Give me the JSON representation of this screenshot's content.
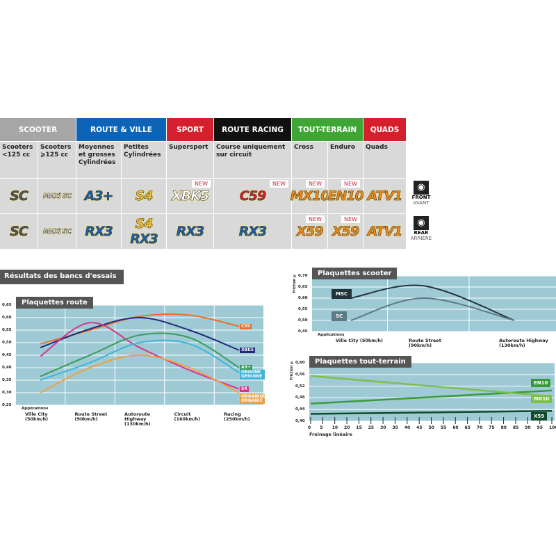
{
  "table": {
    "categories": [
      {
        "label": "SCOOTER",
        "color": "#a6a6a6"
      },
      {
        "label": "ROUTE & VILLE",
        "color": "#0d63b5"
      },
      {
        "label": "SPORT",
        "color": "#d41f2c"
      },
      {
        "label": "ROUTE RACING",
        "color": "#111111"
      },
      {
        "label": "TOUT-TERRAIN",
        "color": "#3fa535"
      },
      {
        "label": "QUADS",
        "color": "#d41f2c"
      }
    ],
    "columns": [
      {
        "desc": "Scooters <125 cc",
        "front": "SC",
        "rear": "SC"
      },
      {
        "desc": "Scooters ⩾125 cc",
        "front": "MAXI SC",
        "rear": "MAXI SC"
      },
      {
        "desc": "Moyennes et grosses Cylindrées",
        "front": "A3+",
        "rear": "RX3"
      },
      {
        "desc": "Petites Cylindrées",
        "front": "S4",
        "rear": "S4",
        "rear2": "RX3"
      },
      {
        "desc": "Supersport",
        "front": "XBK5",
        "rear": "RX3",
        "front_new": "NEW"
      },
      {
        "desc": "Course uniquement sur circuit",
        "front": "C59",
        "rear": "RX3",
        "front_new": "NEW"
      },
      {
        "desc": "Cross",
        "front": "MX10",
        "rear": "X59",
        "front_new": "NEW",
        "rear_new": "NEW"
      },
      {
        "desc": "Enduro",
        "front": "EN10",
        "rear": "X59",
        "front_new": "NEW",
        "rear_new": "NEW"
      },
      {
        "desc": "Quads",
        "front": "ATV1",
        "rear": "ATV1"
      }
    ],
    "front_label": "FRONT",
    "front_sub": "AVANT",
    "rear_label": "REAR",
    "rear_sub": "ARRIÈRE"
  },
  "section_title": "Résultats des bancs d'essais",
  "chart_data": [
    {
      "type": "line",
      "title": "Plaquettes route",
      "ylabel": "Friction µ",
      "xlabel": "Applications",
      "categories": [
        "Ville City (50km/h)",
        "Route Street (90km/h)",
        "Autoroute Highway (130km/h)",
        "Circuit (160km/h)",
        "Racing (250km/h)"
      ],
      "ylim": [
        0.25,
        0.65
      ],
      "yticks": [
        "0,25",
        "0,30",
        "0,35",
        "0,40",
        "0,45",
        "0,50",
        "0,55",
        "0,60",
        "0,65"
      ],
      "series": [
        {
          "name": "C59",
          "color": "#e8702a",
          "values": [
            0.495,
            0.55,
            0.605,
            0.61,
            0.565
          ]
        },
        {
          "name": "XBK5",
          "color": "#1f2a7a",
          "values": [
            0.48,
            0.555,
            0.6,
            0.55,
            0.47
          ]
        },
        {
          "name": "S4",
          "color": "#d8348f",
          "values": [
            0.445,
            0.58,
            0.48,
            0.39,
            0.315
          ]
        },
        {
          "name": "A3+",
          "color": "#3a9a5a",
          "values": [
            0.365,
            0.45,
            0.53,
            0.52,
            0.4
          ]
        },
        {
          "name": "ORIGINE GENUINE",
          "color": "#3fb4d8",
          "values": [
            0.35,
            0.42,
            0.5,
            0.495,
            0.38
          ]
        },
        {
          "name": "ORGANIQUE ORGANIC",
          "color": "#f0a040",
          "values": [
            0.3,
            0.4,
            0.45,
            0.4,
            0.3
          ]
        }
      ]
    },
    {
      "type": "line",
      "title": "Plaquettes scooter",
      "ylabel": "Friction µ",
      "xlabel": "Applications",
      "categories": [
        "Ville City (50km/h)",
        "Route Street (90km/h)",
        "Autoroute Highway (130km/h)"
      ],
      "ylim": [
        0.45,
        0.7
      ],
      "yticks": [
        "0,45",
        "0,50",
        "0,55",
        "0,60",
        "0,65",
        "0,70"
      ],
      "series": [
        {
          "name": "MSC",
          "color": "#22333a",
          "values": [
            0.6,
            0.655,
            0.5
          ]
        },
        {
          "name": "SC",
          "color": "#5b7a85",
          "values": [
            0.5,
            0.6,
            0.5
          ]
        }
      ]
    },
    {
      "type": "line",
      "title": "Plaquettes tout-terrain",
      "ylabel": "Friction µ",
      "xlabel": "Freinage linéaire",
      "x": [
        0,
        5,
        10,
        20,
        15,
        25,
        30,
        35,
        40,
        45,
        50,
        55,
        60,
        65,
        70,
        75,
        80,
        85,
        90,
        95,
        100
      ],
      "xticks": [
        "0",
        "5",
        "10",
        "20",
        "15",
        "25",
        "30",
        "35",
        "40",
        "45",
        "50",
        "55",
        "60",
        "65",
        "70",
        "75",
        "80",
        "85",
        "90",
        "95",
        "100"
      ],
      "ylim": [
        0.4,
        0.6
      ],
      "yticks": [
        "0,40",
        "0,44",
        "0,48",
        "0,52",
        "0,56",
        "0,60"
      ],
      "series": [
        {
          "name": "EN10",
          "color": "#3a9a3a",
          "points": [
            [
              0,
              0.46
            ],
            [
              100,
              0.505
            ]
          ]
        },
        {
          "name": "MX10",
          "color": "#7cc04a",
          "points": [
            [
              0,
              0.555
            ],
            [
              100,
              0.485
            ]
          ]
        },
        {
          "name": "X59",
          "color": "#0f4a2a",
          "points": [
            [
              0,
              0.425
            ],
            [
              100,
              0.435
            ]
          ]
        }
      ]
    }
  ]
}
